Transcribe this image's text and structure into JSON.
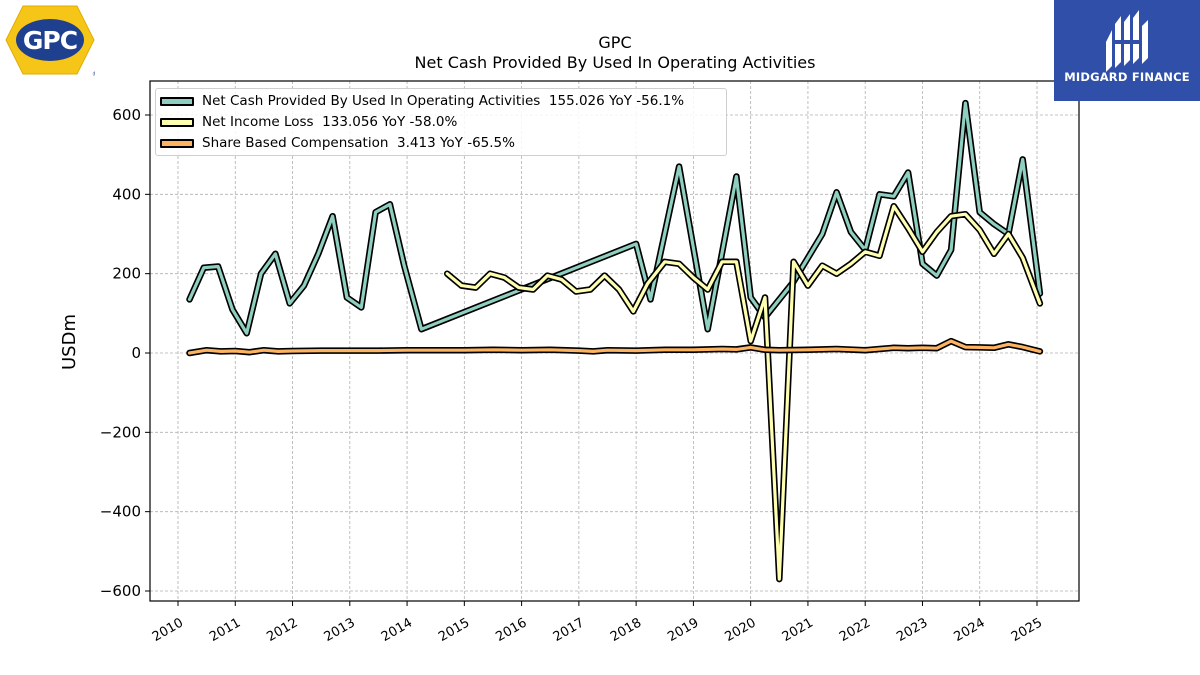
{
  "brand": {
    "gpc_logo_text": "GPC",
    "partner_name": "MIDGARD FINANCE"
  },
  "chart_data": {
    "type": "line",
    "title": "GPC",
    "subtitle": "Net Cash Provided By Used In Operating Activities",
    "ylabel": "USDm",
    "xlabel": "",
    "ylim": [
      -625,
      685
    ],
    "yticks": [
      -600,
      -400,
      -200,
      0,
      200,
      400,
      600
    ],
    "ytick_labels": [
      "−600",
      "−400",
      "−200",
      "0",
      "200",
      "400",
      "600"
    ],
    "xlim": [
      2009.45,
      2025.7
    ],
    "xticks": [
      2010,
      2011,
      2012,
      2013,
      2014,
      2015,
      2016,
      2017,
      2018,
      2019,
      2020,
      2021,
      2022,
      2023,
      2024,
      2025
    ],
    "xtick_labels": [
      "2010",
      "2011",
      "2012",
      "2013",
      "2014",
      "2015",
      "2016",
      "2017",
      "2018",
      "2019",
      "2020",
      "2021",
      "2022",
      "2023",
      "2024",
      "2025"
    ],
    "grid": true,
    "legend_position": "top-left",
    "series": [
      {
        "name": "Net Cash Provided By Used In Operating Activities",
        "legend_value": "155.026",
        "legend_yoy": "YoY -56.1%",
        "color": "#8ecfc0",
        "x": [
          2010.2,
          2010.45,
          2010.7,
          2010.95,
          2011.2,
          2011.45,
          2011.7,
          2011.95,
          2012.2,
          2012.45,
          2012.7,
          2012.95,
          2013.2,
          2013.45,
          2013.7,
          2013.95,
          2014.25,
          2018.0,
          2018.25,
          2018.75,
          2019.25,
          2019.75,
          2020.0,
          2020.25,
          2020.75,
          2021.25,
          2021.5,
          2021.75,
          2022.0,
          2022.25,
          2022.5,
          2022.75,
          2023.0,
          2023.25,
          2023.5,
          2023.75,
          2024.0,
          2024.25,
          2024.5,
          2024.75,
          2025.05
        ],
        "y": [
          135,
          215,
          218,
          110,
          50,
          200,
          250,
          125,
          170,
          250,
          345,
          140,
          115,
          355,
          375,
          220,
          60,
          275,
          135,
          470,
          60,
          445,
          140,
          90,
          180,
          300,
          405,
          305,
          260,
          400,
          395,
          455,
          225,
          195,
          260,
          630,
          355,
          325,
          300,
          488,
          150
        ]
      },
      {
        "name": "Net Income Loss",
        "legend_value": "133.056",
        "legend_yoy": "YoY -58.0%",
        "color": "#ffffb2",
        "x": [
          2014.7,
          2014.95,
          2015.2,
          2015.45,
          2015.7,
          2015.95,
          2016.2,
          2016.45,
          2016.7,
          2016.95,
          2017.2,
          2017.45,
          2017.7,
          2017.95,
          2018.2,
          2018.5,
          2018.75,
          2019.0,
          2019.25,
          2019.5,
          2019.75,
          2020.0,
          2020.25,
          2020.5,
          2020.75,
          2021.0,
          2021.25,
          2021.5,
          2021.75,
          2022.0,
          2022.25,
          2022.5,
          2022.75,
          2023.0,
          2023.25,
          2023.5,
          2023.75,
          2024.0,
          2024.25,
          2024.5,
          2024.75,
          2025.05
        ],
        "y": [
          200,
          170,
          165,
          200,
          190,
          165,
          160,
          195,
          185,
          155,
          160,
          195,
          160,
          105,
          175,
          230,
          225,
          190,
          160,
          230,
          230,
          30,
          140,
          -570,
          230,
          170,
          220,
          200,
          225,
          255,
          245,
          370,
          315,
          255,
          305,
          345,
          350,
          310,
          250,
          300,
          240,
          125
        ]
      },
      {
        "name": "Share Based Compensation",
        "legend_value": "3.413",
        "legend_yoy": "YoY -65.5%",
        "color": "#fdb462",
        "x": [
          2010.2,
          2010.5,
          2010.75,
          2011.0,
          2011.25,
          2011.5,
          2011.75,
          2012.0,
          2012.5,
          2013.0,
          2013.5,
          2014.0,
          2014.5,
          2015.0,
          2015.5,
          2016.0,
          2016.5,
          2017.0,
          2017.25,
          2017.5,
          2018.0,
          2018.5,
          2019.0,
          2019.5,
          2019.75,
          2020.0,
          2020.25,
          2020.5,
          2021.0,
          2021.5,
          2022.0,
          2022.25,
          2022.5,
          2022.75,
          2023.0,
          2023.25,
          2023.5,
          2023.75,
          2024.0,
          2024.25,
          2024.5,
          2024.75,
          2025.05
        ],
        "y": [
          0,
          7,
          4,
          5,
          2,
          7,
          4,
          5,
          6,
          6,
          6,
          7,
          7,
          7,
          8,
          7,
          8,
          6,
          4,
          7,
          6,
          8,
          8,
          10,
          9,
          14,
          8,
          7,
          8,
          10,
          7,
          10,
          13,
          12,
          13,
          12,
          30,
          15,
          14,
          13,
          22,
          15,
          4
        ]
      }
    ]
  }
}
